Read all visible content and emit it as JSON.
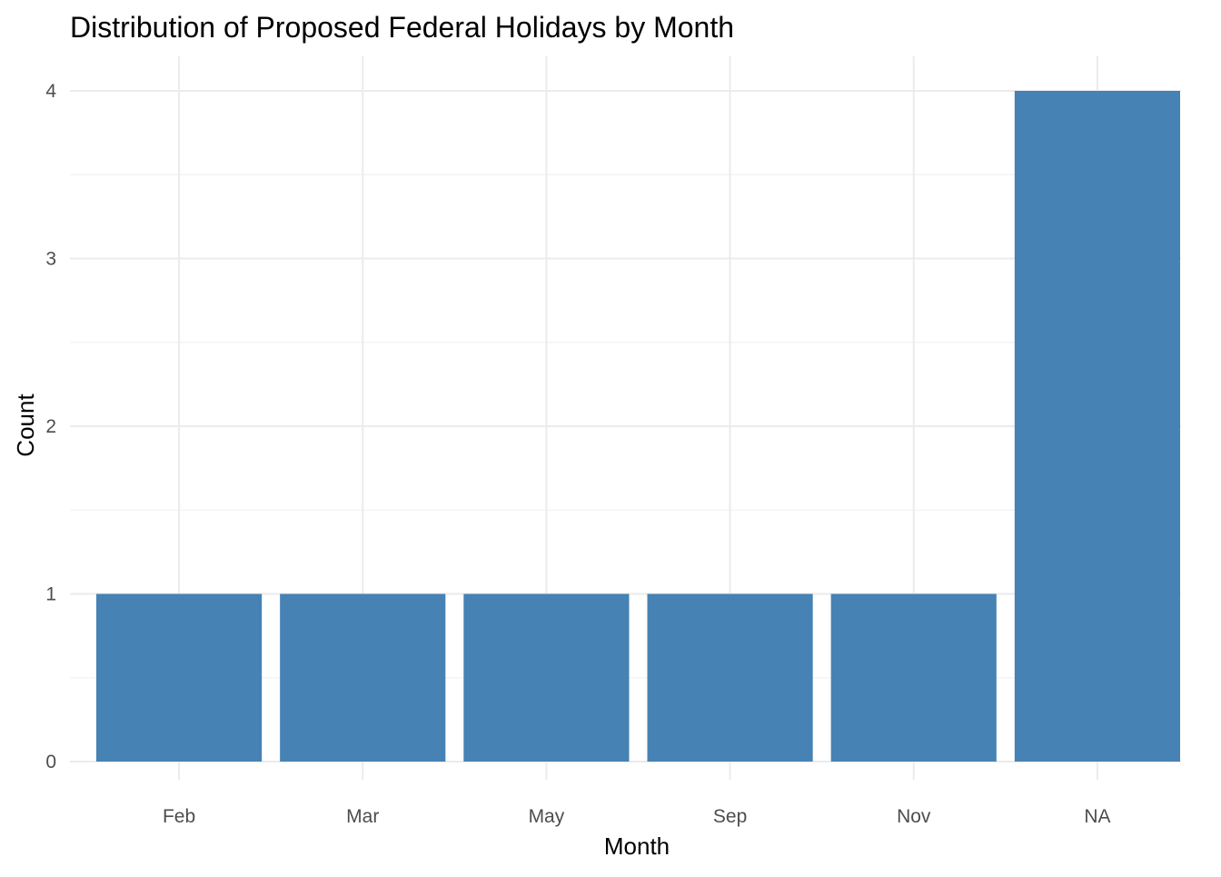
{
  "chart_data": {
    "type": "bar",
    "title": "Distribution of Proposed Federal Holidays by Month",
    "xlabel": "Month",
    "ylabel": "Count",
    "categories": [
      "Feb",
      "Mar",
      "May",
      "Sep",
      "Nov",
      "NA"
    ],
    "values": [
      1,
      1,
      1,
      1,
      1,
      4
    ],
    "ylim": [
      0,
      4
    ],
    "yticks": [
      0,
      1,
      2,
      3,
      4
    ],
    "grid": true,
    "legend": "none",
    "colors": {
      "bar": "#4682B4",
      "grid_major": "#EBEBEB",
      "grid_minor": "#F3F3F3",
      "tick_text": "#4D4D4D",
      "title_text": "#000000"
    }
  }
}
